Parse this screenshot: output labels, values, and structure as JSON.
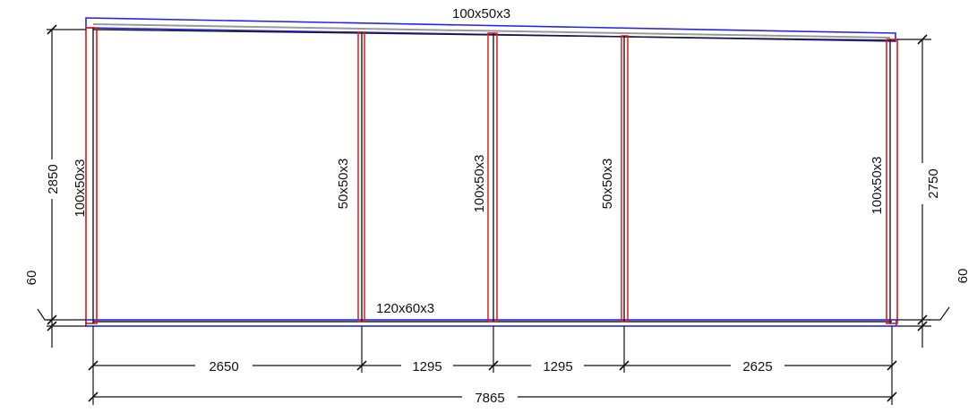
{
  "colors": {
    "beam_outline": "#2626e6",
    "post_outline": "#e01818",
    "structure": "#1a1a1a",
    "dimension": "#111111",
    "background": "#ffffff"
  },
  "members": {
    "top_beam": "100x50x3",
    "bottom_beam": "120x60x3",
    "post_1": "100x50x3",
    "post_2": "50x50x3",
    "post_3": "100x50x3",
    "post_4": "50x50x3",
    "post_5": "100x50x3"
  },
  "dimensions": {
    "left_height": "2850",
    "right_height": "2750",
    "left_base": "60",
    "right_base": "60",
    "bays": [
      "2650",
      "1295",
      "1295",
      "2625"
    ],
    "overall": "7865"
  }
}
